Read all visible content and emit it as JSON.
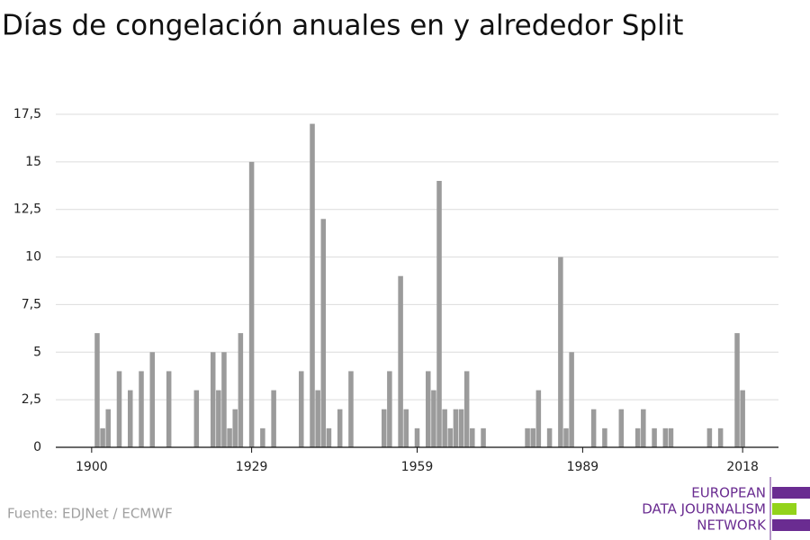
{
  "chart_data": {
    "type": "bar",
    "title": "Días de congelación anuales en y alrededor Split",
    "source": "Fuente: EDJNet / ECMWF",
    "logo": [
      "EUROPEAN",
      "DATA JOURNALISM",
      "NETWORK"
    ],
    "x": [
      1901,
      1902,
      1903,
      1905,
      1907,
      1909,
      1911,
      1914,
      1919,
      1922,
      1923,
      1924,
      1925,
      1926,
      1927,
      1929,
      1931,
      1933,
      1938,
      1940,
      1941,
      1942,
      1943,
      1945,
      1947,
      1953,
      1954,
      1956,
      1957,
      1959,
      1961,
      1962,
      1963,
      1964,
      1965,
      1966,
      1967,
      1968,
      1969,
      1971,
      1979,
      1980,
      1981,
      1983,
      1985,
      1986,
      1987,
      1991,
      1993,
      1996,
      1999,
      2000,
      2002,
      2004,
      2005,
      2012,
      2014,
      2017,
      2018
    ],
    "values": [
      6,
      1,
      2,
      4,
      3,
      4,
      5,
      4,
      3,
      5,
      3,
      5,
      1,
      2,
      6,
      15,
      1,
      3,
      4,
      17,
      3,
      12,
      1,
      2,
      4,
      2,
      4,
      9,
      2,
      1,
      4,
      3,
      14,
      2,
      1,
      2,
      2,
      4,
      1,
      1,
      1,
      1,
      3,
      1,
      10,
      1,
      5,
      2,
      1,
      2,
      1,
      2,
      1,
      1,
      1,
      1,
      1,
      6,
      3
    ],
    "color": "#9b9b9b",
    "xlim": [
      1893.5,
      2024.5
    ],
    "xticks": [
      1900,
      1929,
      1959,
      1989,
      2018
    ],
    "ylim": [
      0,
      17.5
    ],
    "yticks": [
      0,
      {
        "value": 2.5,
        "label": "2,5"
      },
      5,
      {
        "value": 7.5,
        "label": "7,5"
      },
      10,
      {
        "value": 12.5,
        "label": "12,5"
      },
      15,
      {
        "value": 17.5,
        "label": "17,5"
      }
    ],
    "grid": true
  }
}
